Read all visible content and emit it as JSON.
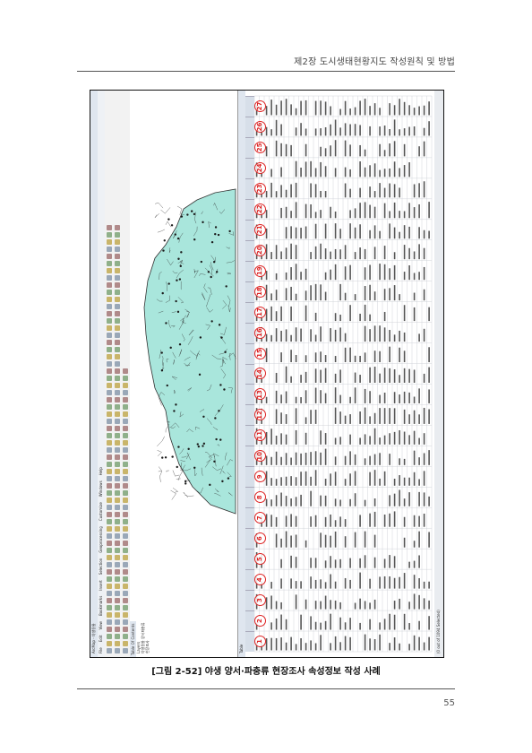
{
  "header": {
    "title": "제2장 도시생태현황지도 작성원칙 및 방법"
  },
  "figure": {
    "window_title": "ArcMap - 야생동물",
    "menu": [
      "File",
      "Edit",
      "View",
      "Bookmarks",
      "Insert",
      "Selection",
      "Geoprocessing",
      "Customize",
      "Windows",
      "Help"
    ],
    "toc_title": "Table Of Contents",
    "toc_items": [
      "Layers",
      "야생동물 양서파충류",
      "현장조사"
    ],
    "table_title": "Table",
    "status_text": "(0 out of 1094 Selected)",
    "markers": [
      "1",
      "2",
      "3",
      "4",
      "5",
      "6",
      "7",
      "8",
      "9",
      "10",
      "11",
      "12",
      "13",
      "14",
      "15",
      "16",
      "17",
      "18",
      "19",
      "20",
      "21",
      "22",
      "23",
      "24",
      "25",
      "26",
      "27"
    ],
    "colors": {
      "marker": "#dd2222",
      "map_fill": "#a9e6dc",
      "map_line": "#333333"
    }
  },
  "caption": "[그림 2-52] 야생 양서·파충류 현장조사 속성정보 작성 사례",
  "page_number": "55"
}
